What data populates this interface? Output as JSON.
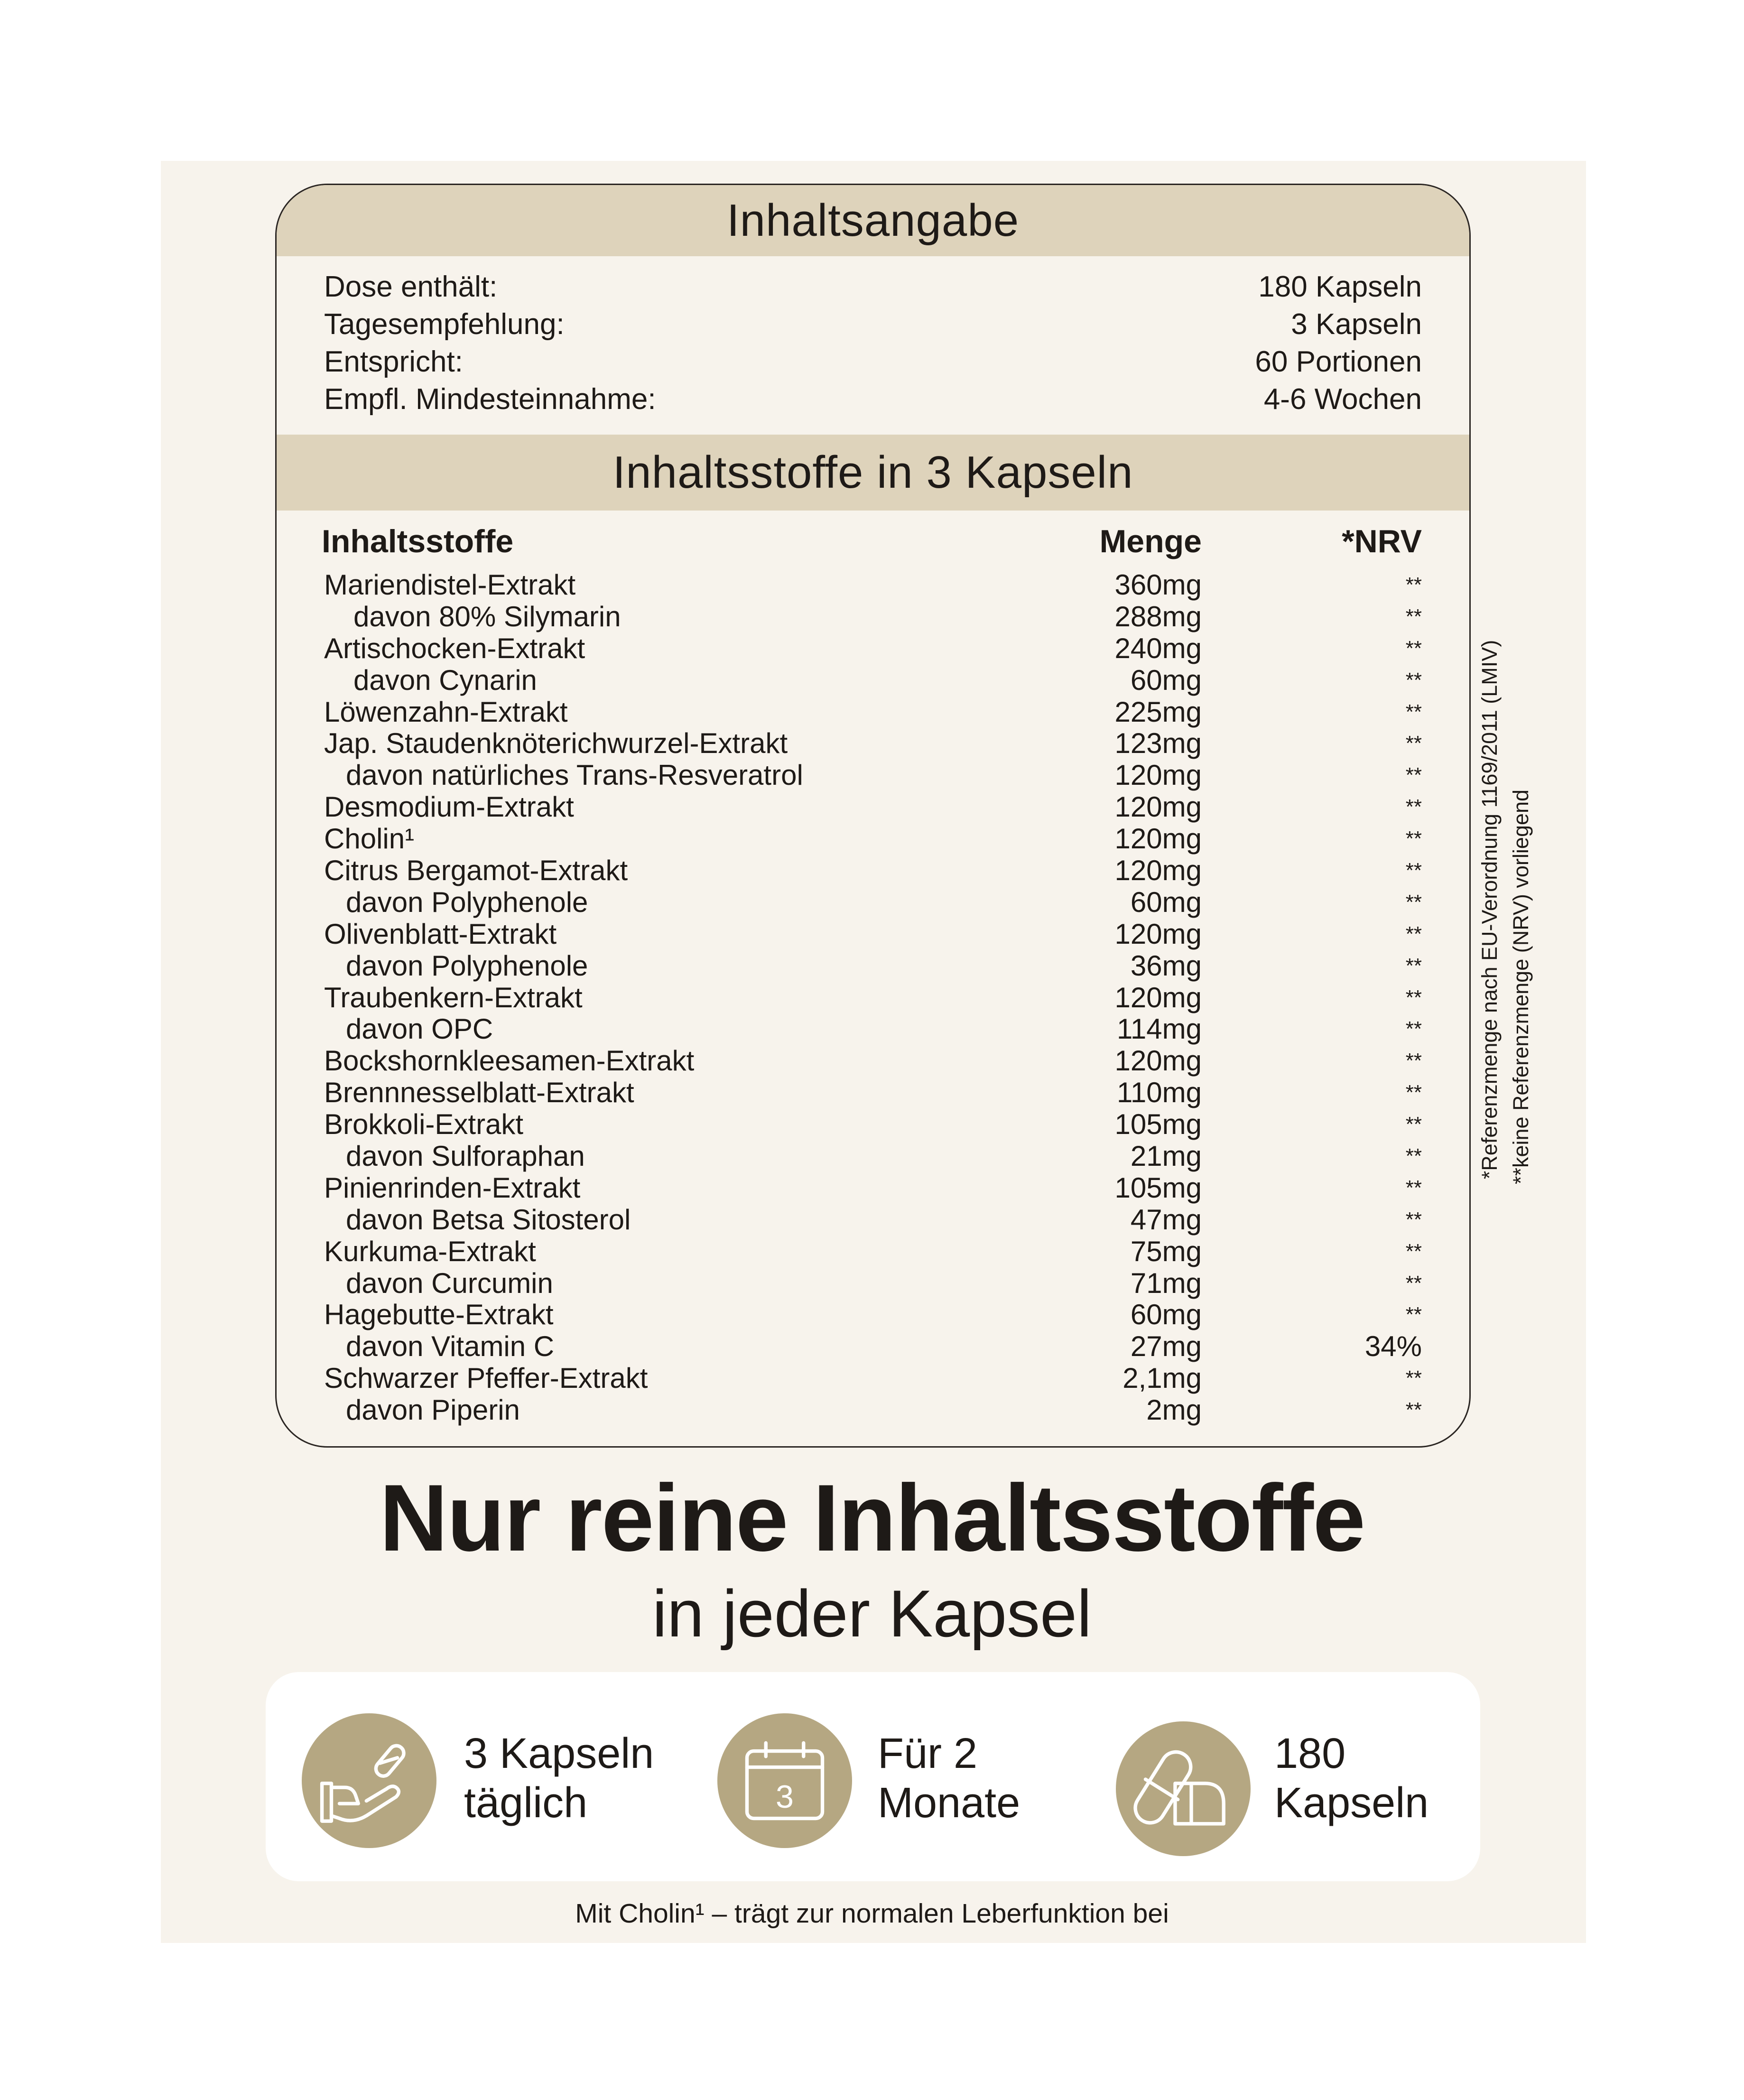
{
  "header": {
    "title": "Inhaltsangabe"
  },
  "info": [
    {
      "label": "Dose enthält:",
      "value": "180 Kapseln"
    },
    {
      "label": "Tagesempfehlung:",
      "value": "3 Kapseln"
    },
    {
      "label": "Entspricht:",
      "value": "60 Portionen"
    },
    {
      "label": "Empfl. Mindesteinnahme:",
      "value": "4-6 Wochen"
    }
  ],
  "section_title": "Inhaltsstoffe in 3 Kapseln",
  "columns": {
    "name": "Inhaltsstoffe",
    "amount": "Menge",
    "nrv": "*NRV"
  },
  "rows": [
    {
      "name": "Mariendistel-Extrakt",
      "amount": "360mg",
      "nrv": "**",
      "level": 0
    },
    {
      "name": "davon 80% Silymarin",
      "amount": "288mg",
      "nrv": "**",
      "level": 2
    },
    {
      "name": "Artischocken-Extrakt",
      "amount": "240mg",
      "nrv": "**",
      "level": 0
    },
    {
      "name": "davon Cynarin",
      "amount": "60mg",
      "nrv": "**",
      "level": 2
    },
    {
      "name": "Löwenzahn-Extrakt",
      "amount": "225mg",
      "nrv": "**",
      "level": 0
    },
    {
      "name": "Jap. Staudenknöterichwurzel-Extrakt",
      "amount": "123mg",
      "nrv": "**",
      "level": 0
    },
    {
      "name": "davon natürliches Trans-Resveratrol",
      "amount": "120mg",
      "nrv": "**",
      "level": 1
    },
    {
      "name": "Desmodium-Extrakt",
      "amount": "120mg",
      "nrv": "**",
      "level": 0
    },
    {
      "name": "Cholin¹",
      "amount": "120mg",
      "nrv": "**",
      "level": 0
    },
    {
      "name": "Citrus Bergamot-Extrakt",
      "amount": "120mg",
      "nrv": "**",
      "level": 0
    },
    {
      "name": "davon Polyphenole",
      "amount": "60mg",
      "nrv": "**",
      "level": 1
    },
    {
      "name": "Olivenblatt-Extrakt",
      "amount": "120mg",
      "nrv": "**",
      "level": 0
    },
    {
      "name": "davon Polyphenole",
      "amount": "36mg",
      "nrv": "**",
      "level": 1
    },
    {
      "name": "Traubenkern-Extrakt",
      "amount": "120mg",
      "nrv": "**",
      "level": 0
    },
    {
      "name": "davon OPC",
      "amount": "114mg",
      "nrv": "**",
      "level": 1
    },
    {
      "name": "Bockshornkleesamen-Extrakt",
      "amount": "120mg",
      "nrv": "**",
      "level": 0
    },
    {
      "name": "Brennnesselblatt-Extrakt",
      "amount": "110mg",
      "nrv": "**",
      "level": 0
    },
    {
      "name": "Brokkoli-Extrakt",
      "amount": "105mg",
      "nrv": "**",
      "level": 0
    },
    {
      "name": "davon Sulforaphan",
      "amount": "21mg",
      "nrv": "**",
      "level": 1
    },
    {
      "name": "Pinienrinden-Extrakt",
      "amount": "105mg",
      "nrv": "**",
      "level": 0
    },
    {
      "name": "davon Betsa Sitosterol",
      "amount": "47mg",
      "nrv": "**",
      "level": 1
    },
    {
      "name": "Kurkuma-Extrakt",
      "amount": "75mg",
      "nrv": "**",
      "level": 0
    },
    {
      "name": "davon Curcumin",
      "amount": "71mg",
      "nrv": "**",
      "level": 1
    },
    {
      "name": "Hagebutte-Extrakt",
      "amount": "60mg",
      "nrv": "**",
      "level": 0
    },
    {
      "name": "davon Vitamin C",
      "amount": "27mg",
      "nrv": "34%",
      "level": 1
    },
    {
      "name": "Schwarzer Pfeffer-Extrakt",
      "amount": "2,1mg",
      "nrv": "**",
      "level": 0
    },
    {
      "name": "davon Piperin",
      "amount": "2mg",
      "nrv": "**",
      "level": 1
    }
  ],
  "notes": {
    "nrv_reference": "*Referenzmenge nach EU-Verordnung 1169/2011 (LMIV)",
    "no_reference": "**keine Referenzmenge (NRV) vorliegend"
  },
  "headline": "Nur reine Inhaltsstoffe",
  "subheadline": "in jeder Kapsel",
  "features": [
    {
      "icon": "hand-capsule-icon",
      "line1": "3 Kapseln",
      "line2": "täglich"
    },
    {
      "icon": "calendar-icon",
      "line1": "Für 2",
      "line2": "Monate",
      "calendar_number": "3"
    },
    {
      "icon": "capsules-icon",
      "line1": "180",
      "line2": "Kapseln"
    }
  ],
  "footer": "Mit Cholin¹ – trägt zur normalen Leberfunktion bei",
  "colors": {
    "band": "#ded3bb",
    "card": "#f7f3ec",
    "icon_circle": "#b5a782"
  }
}
